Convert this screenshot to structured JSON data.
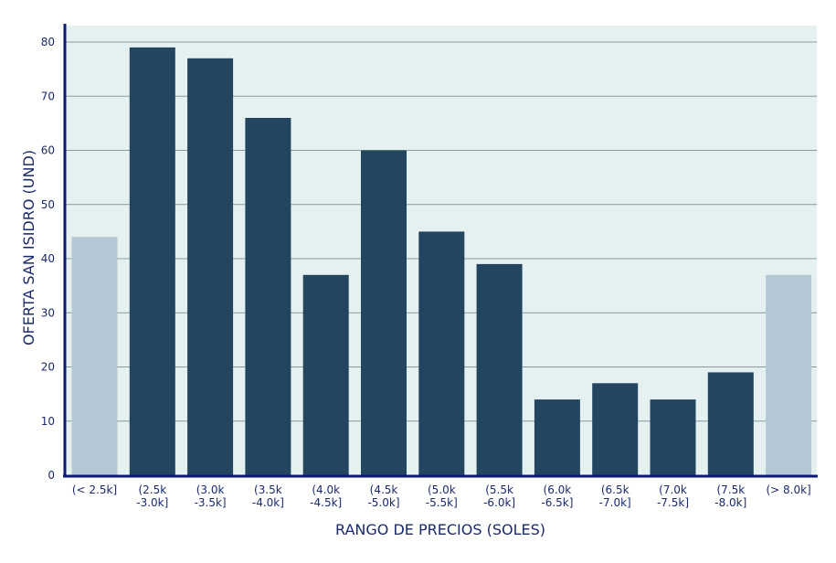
{
  "chart_data": {
    "type": "bar",
    "title": "",
    "xlabel": "RANGO DE PRECIOS (SOLES)",
    "ylabel": "OFERTA SAN ISIDRO (UND)",
    "ylim": [
      0,
      80
    ],
    "yticks": [
      "0",
      "10",
      "20",
      "30",
      "40",
      "50",
      "60",
      "70",
      "80"
    ],
    "grid": true,
    "categories": [
      [
        "(< 2.5k]"
      ],
      [
        "(2.5k",
        "-3.0k]"
      ],
      [
        "(3.0k",
        "-3.5k]"
      ],
      [
        "(3.5k",
        "-4.0k]"
      ],
      [
        "(4.0k",
        "-4.5k]"
      ],
      [
        "(4.5k",
        "-5.0k]"
      ],
      [
        "(5.0k",
        "-5.5k]"
      ],
      [
        "(5.5k",
        "-6.0k]"
      ],
      [
        "(6.0k",
        "-6.5k]"
      ],
      [
        "(6.5k",
        "-7.0k]"
      ],
      [
        "(7.0k",
        "-7.5k]"
      ],
      [
        "(7.5k",
        "-8.0k]"
      ],
      [
        "(> 8.0k]"
      ]
    ],
    "values": [
      44,
      79,
      77,
      66,
      37,
      60,
      45,
      39,
      14,
      17,
      14,
      19,
      37
    ],
    "bar_colors": [
      "#b3c7d4",
      "#23455f",
      "#23455f",
      "#23455f",
      "#23455f",
      "#23455f",
      "#23455f",
      "#23455f",
      "#23455f",
      "#23455f",
      "#23455f",
      "#23455f",
      "#b3c7d4"
    ],
    "colors": {
      "plot_background": "#e5f1f1",
      "gridline": "#8a9a9d",
      "axis": "#0b1a7a",
      "text": "#1a2a6c"
    }
  }
}
